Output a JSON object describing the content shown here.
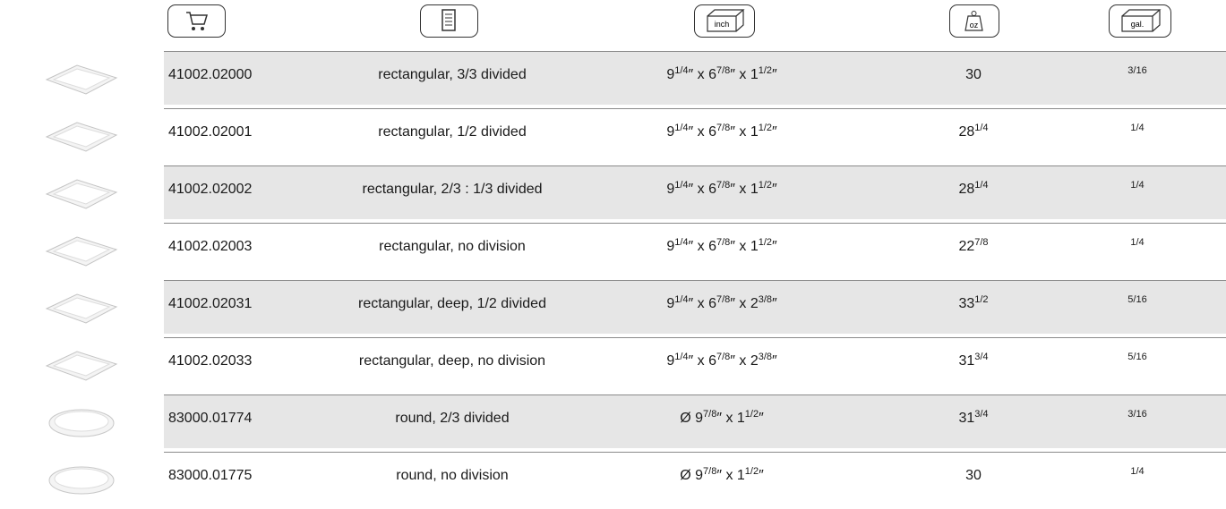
{
  "header": {
    "icon_labels": [
      "inch",
      "oz",
      "gal."
    ]
  },
  "rows": [
    {
      "code": "41002.02000",
      "description": "rectangular, 3/3 divided",
      "dimensions": [
        "9",
        "1/4",
        "″ x 6",
        "7/8",
        "″ x 1",
        "1/2",
        "″"
      ],
      "weight": [
        "30"
      ],
      "volume": "3/16"
    },
    {
      "code": "41002.02001",
      "description": "rectangular, 1/2 divided",
      "dimensions": [
        "9",
        "1/4",
        "″ x 6",
        "7/8",
        "″ x 1",
        "1/2",
        "″"
      ],
      "weight": [
        "28",
        "1/4"
      ],
      "volume": "1/4"
    },
    {
      "code": "41002.02002",
      "description": "rectangular, 2/3 : 1/3 divided",
      "dimensions": [
        "9",
        "1/4",
        "″ x 6",
        "7/8",
        "″ x 1",
        "1/2",
        "″"
      ],
      "weight": [
        "28",
        "1/4"
      ],
      "volume": "1/4"
    },
    {
      "code": "41002.02003",
      "description": "rectangular, no division",
      "dimensions": [
        "9",
        "1/4",
        "″ x 6",
        "7/8",
        "″ x 1",
        "1/2",
        "″"
      ],
      "weight": [
        "22",
        "7/8"
      ],
      "volume": "1/4"
    },
    {
      "code": "41002.02031",
      "description": "rectangular, deep, 1/2 divided",
      "dimensions": [
        "9",
        "1/4",
        "″ x 6",
        "7/8",
        "″ x 2",
        "3/8",
        "″"
      ],
      "weight": [
        "33",
        "1/2"
      ],
      "volume": "5/16"
    },
    {
      "code": "41002.02033",
      "description": "rectangular, deep, no division",
      "dimensions": [
        "9",
        "1/4",
        "″ x 6",
        "7/8",
        "″ x 2",
        "3/8",
        "″"
      ],
      "weight": [
        "31",
        "3/4"
      ],
      "volume": "5/16"
    },
    {
      "code": "83000.01774",
      "description": "round, 2/3 divided",
      "dimensions": [
        "Ø 9",
        "7/8",
        "″ x 1",
        "1/2",
        "″"
      ],
      "weight": [
        "31",
        "3/4"
      ],
      "volume": "3/16"
    },
    {
      "code": "83000.01775",
      "description": "round, no division",
      "dimensions": [
        "Ø 9",
        "7/8",
        "″ x 1",
        "1/2",
        "″"
      ],
      "weight": [
        "30"
      ],
      "volume": "1/4"
    }
  ]
}
